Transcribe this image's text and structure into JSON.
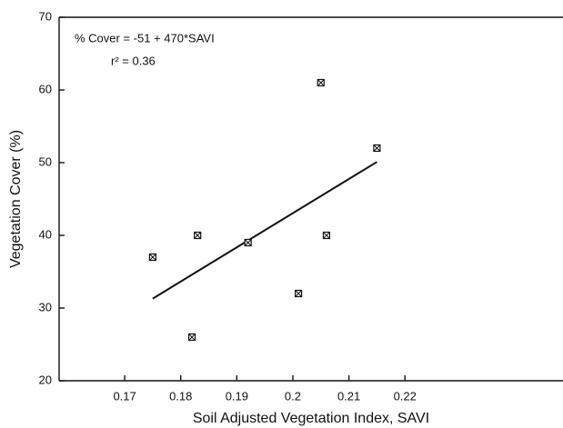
{
  "chart_data": {
    "type": "scatter",
    "x_label": "Soil Adjusted Vegetation Index, SAVI",
    "y_label": "Vegetation Cover (%)",
    "annotations": [
      "% Cover = -51 + 470*SAVI",
      "r² = 0.36"
    ],
    "x": [
      0.175,
      0.182,
      0.183,
      0.192,
      0.201,
      0.205,
      0.206,
      0.215
    ],
    "values": [
      37,
      26,
      40,
      39,
      32,
      61,
      40,
      52
    ],
    "color": "#111111",
    "fit_line": {
      "x": [
        0.175,
        0.215
      ],
      "values": [
        31.3,
        50.1
      ]
    },
    "xlim": [
      0.1583,
      0.2482
    ],
    "xticks": [
      0.17,
      0.18,
      0.19,
      0.2,
      0.21,
      0.22
    ],
    "ylim": [
      20,
      70
    ],
    "yticks": [
      20,
      30,
      40,
      50,
      60,
      70
    ],
    "grid": false
  }
}
